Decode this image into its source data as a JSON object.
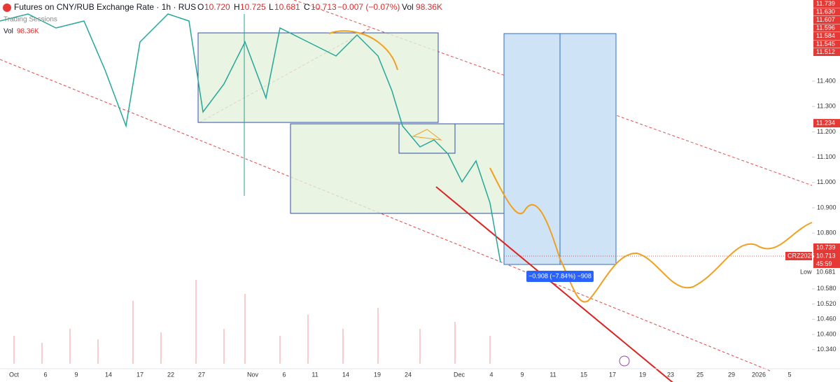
{
  "header": {
    "symbol": "Futures on CNY/RUB Exchange Rate · 1h · RUS",
    "o_label": "O",
    "open": "10.720",
    "h_label": "H",
    "high": "10.725",
    "l_label": "L",
    "low": "10.681",
    "c_label": "C",
    "close": "10.713",
    "change": "−0.007 (−0.07%)",
    "vol_label": "Vol",
    "vol": "98.36K",
    "sessions": "Trading Sessions",
    "vol_row_label": "Vol",
    "vol_row_value": "98.36K"
  },
  "price_axis": {
    "ticks": [
      {
        "value": 11.4,
        "label": "11.400"
      },
      {
        "value": 11.3,
        "label": "11.300"
      },
      {
        "value": 11.2,
        "label": "11.200"
      },
      {
        "value": 11.1,
        "label": "11.100"
      },
      {
        "value": 11.0,
        "label": "11.000"
      },
      {
        "value": 10.9,
        "label": "10.900"
      },
      {
        "value": 10.8,
        "label": "10.800"
      },
      {
        "value": 10.58,
        "label": "10.580"
      },
      {
        "value": 10.52,
        "label": "10.520"
      },
      {
        "value": 10.46,
        "label": "10.460"
      },
      {
        "value": 10.4,
        "label": "10.400"
      },
      {
        "value": 10.34,
        "label": "10.340"
      }
    ],
    "top_tags": [
      "11.739",
      "11.630",
      "11.607",
      "11.596",
      "11.584",
      "11.545",
      "11.512"
    ],
    "tag_mid": {
      "value": 11.234,
      "label": "11.234"
    },
    "tag_high": {
      "value": 10.739,
      "label": "10.739"
    },
    "tag_last": {
      "value": 10.713,
      "label": "10.713"
    },
    "countdown": "45:59",
    "symbol_tag": "CRZ2025",
    "low_label": "Low",
    "tag_low": {
      "value": 10.681,
      "label": "10.681"
    }
  },
  "time_axis": [
    "Oct",
    "6",
    "9",
    "14",
    "17",
    "22",
    "27",
    "Nov",
    "6",
    "11",
    "14",
    "19",
    "24",
    "Dec",
    "4",
    "9",
    "11",
    "15",
    "17",
    "19",
    "23",
    "25",
    "29",
    "2026",
    "5"
  ],
  "measure": "−0.908 (−7.84%) −908"
}
